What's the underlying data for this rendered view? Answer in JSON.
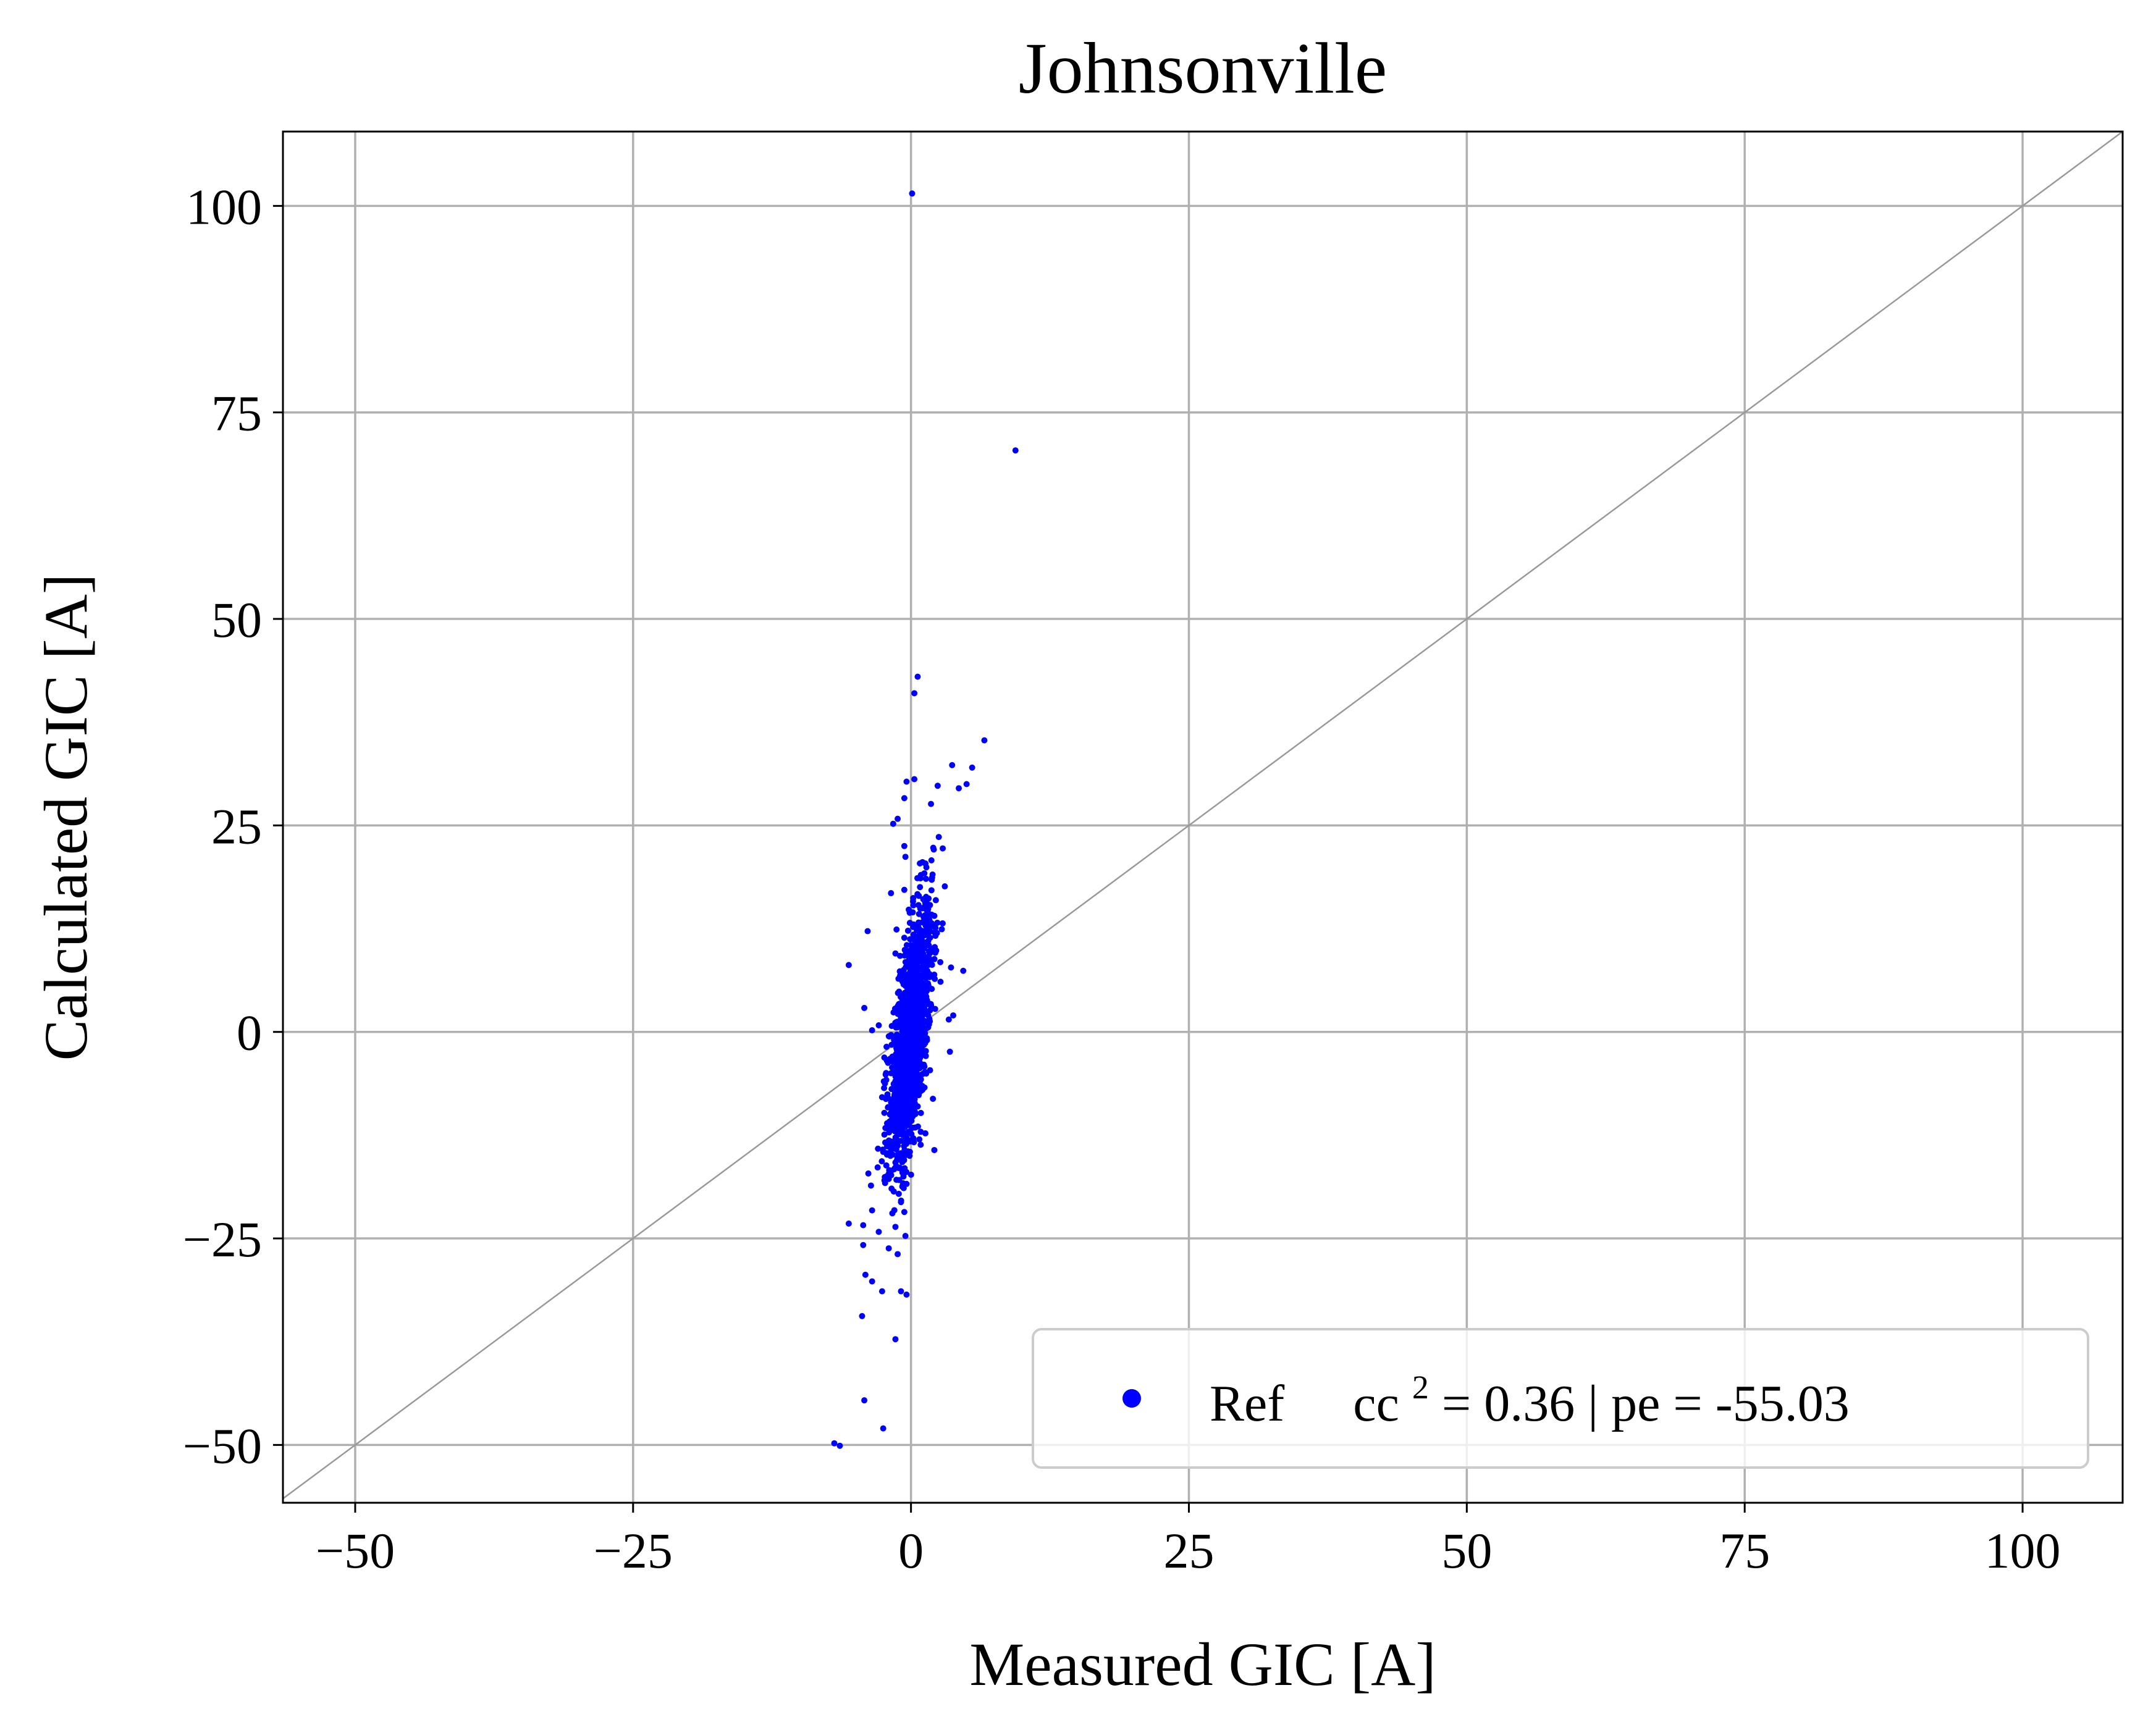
{
  "chart_data": {
    "type": "scatter",
    "title": "Johnsonville",
    "xlabel": "Measured GIC [A]",
    "ylabel": "Calculated GIC [A]",
    "xlim": [
      -56.5,
      109
    ],
    "ylim": [
      -57,
      109
    ],
    "x_ticks": [
      -50,
      -25,
      0,
      25,
      50,
      75,
      100
    ],
    "y_ticks": [
      -50,
      -25,
      0,
      25,
      50,
      75,
      100
    ],
    "x_tick_labels": [
      "−50",
      "−25",
      "0",
      "25",
      "50",
      "75",
      "100"
    ],
    "y_tick_labels": [
      "−50",
      "−25",
      "0",
      "25",
      "50",
      "75",
      "100"
    ],
    "grid": true,
    "reference_line": {
      "slope": 1,
      "intercept": 0,
      "color": "#999999"
    },
    "legend": {
      "placement": "lower-right",
      "series_name": "Ref",
      "cc_base": "cc",
      "cc_sup": "2",
      "stats_rest": " = 0.36 | pe = -55.03"
    },
    "colors": {
      "points": "#0000ff",
      "grid": "#b0b0b0",
      "reference": "#999999"
    },
    "series": [
      {
        "name": "Ref",
        "points": [
          [
            0.1,
            101.5
          ],
          [
            9.4,
            70.4
          ],
          [
            0.6,
            43
          ],
          [
            0.3,
            41
          ],
          [
            6.6,
            35.3
          ],
          [
            5.5,
            32
          ],
          [
            3.7,
            32.3
          ],
          [
            0.3,
            30.6
          ],
          [
            -0.4,
            30.3
          ],
          [
            5,
            30
          ],
          [
            4.3,
            29.5
          ],
          [
            2.4,
            29.8
          ],
          [
            -0.6,
            28.3
          ],
          [
            1.8,
            27.6
          ],
          [
            -1.6,
            25.2
          ],
          [
            -1.2,
            25.8
          ],
          [
            2.5,
            23.6
          ],
          [
            2.0,
            22.3
          ],
          [
            -0.6,
            22.5
          ],
          [
            -0.5,
            21.2
          ],
          [
            0.8,
            20.4
          ],
          [
            1.2,
            19.2
          ],
          [
            1.9,
            18.7
          ],
          [
            -0.6,
            17.2
          ],
          [
            -1.8,
            16.8
          ],
          [
            0.2,
            16.2
          ],
          [
            -0.2,
            14.8
          ],
          [
            1.4,
            14.2
          ],
          [
            -1.3,
            12.4
          ],
          [
            -0.1,
            13.2
          ],
          [
            2.2,
            12.6
          ],
          [
            -3.9,
            12.2
          ],
          [
            -0.6,
            11.4
          ],
          [
            -1.4,
            9.5
          ],
          [
            -5.6,
            8.1
          ],
          [
            4.7,
            7.4
          ],
          [
            3.6,
            7.8
          ],
          [
            -4.2,
            2.9
          ],
          [
            3.8,
            2.0
          ],
          [
            3.4,
            1.5
          ],
          [
            -3.5,
            0.2
          ],
          [
            -2.9,
            0.8
          ],
          [
            -2.2,
            -1.8
          ],
          [
            3.5,
            -2.4
          ],
          [
            -2.4,
            -3.1
          ],
          [
            -1.8,
            -5.0
          ],
          [
            -2.6,
            -7.9
          ],
          [
            -2.4,
            -9.8
          ],
          [
            -2.2,
            -11.6
          ],
          [
            -2.0,
            -13.2
          ],
          [
            -1.8,
            -14.8
          ],
          [
            -1.4,
            -15.8
          ],
          [
            2.1,
            -14.3
          ],
          [
            -3.0,
            -16.4
          ],
          [
            -2.0,
            -17.8
          ],
          [
            -3.6,
            -18.6
          ],
          [
            -0.4,
            -18.4
          ],
          [
            -1.1,
            -19.6
          ],
          [
            -0.9,
            -20.6
          ],
          [
            -3.5,
            -21.6
          ],
          [
            -0.6,
            -21.8
          ],
          [
            -5.6,
            -23.2
          ],
          [
            -4.3,
            -23.4
          ],
          [
            -1.4,
            -23.6
          ],
          [
            -2.9,
            -24.2
          ],
          [
            -0.5,
            -24.7
          ],
          [
            -4.3,
            -25.8
          ],
          [
            -2.0,
            -26.2
          ],
          [
            -1.2,
            -26.9
          ],
          [
            -4.1,
            -29.4
          ],
          [
            -3.5,
            -30.2
          ],
          [
            -2.6,
            -31.4
          ],
          [
            -0.9,
            -31.4
          ],
          [
            -0.4,
            -31.8
          ],
          [
            -4.4,
            -34.4
          ],
          [
            -1.4,
            -37.2
          ],
          [
            -4.2,
            -44.6
          ],
          [
            -2.5,
            -48
          ],
          [
            -6.9,
            -49.8
          ],
          [
            -6.4,
            -50.1
          ]
        ],
        "cluster": {
          "center": [
            0.0,
            -0.5
          ],
          "count": 1500,
          "x_sd": 0.95,
          "y_sd": 7.8,
          "correlation": 0.62
        }
      }
    ]
  }
}
